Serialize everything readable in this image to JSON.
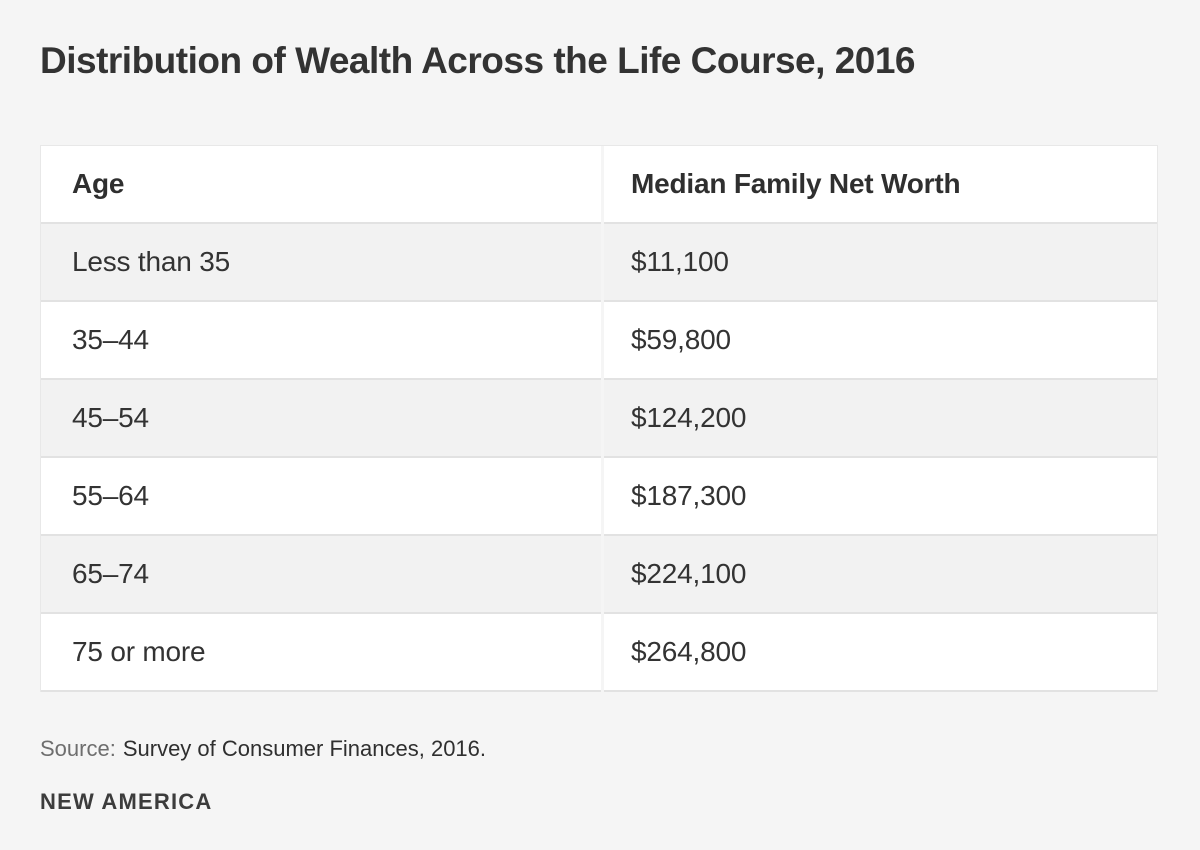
{
  "title": "Distribution of Wealth Across the Life Course, 2016",
  "table": {
    "columns": [
      "Age",
      "Median Family Net Worth"
    ],
    "rows": [
      {
        "age": "Less than 35",
        "net_worth": "$11,100"
      },
      {
        "age": "35–44",
        "net_worth": "$59,800"
      },
      {
        "age": "45–54",
        "net_worth": "$124,200"
      },
      {
        "age": "55–64",
        "net_worth": "$187,300"
      },
      {
        "age": "65–74",
        "net_worth": "$224,100"
      },
      {
        "age": "75 or more",
        "net_worth": "$264,800"
      }
    ]
  },
  "source": {
    "label": "Source:",
    "text": "Survey of Consumer Finances, 2016."
  },
  "brand": "NEW AMERICA",
  "colors": {
    "page_background": "#f5f5f5",
    "row_shaded": "#f2f2f2",
    "row_plain": "#ffffff",
    "separator": "#e2e2e2",
    "text_dark": "#333333",
    "text_muted": "#6e6e6e"
  },
  "chart_data": {
    "type": "table",
    "title": "Distribution of Wealth Across the Life Course, 2016",
    "columns": [
      "Age",
      "Median Family Net Worth"
    ],
    "categories": [
      "Less than 35",
      "35–44",
      "45–54",
      "55–64",
      "65–74",
      "75 or more"
    ],
    "values": [
      11100,
      59800,
      124200,
      187300,
      224100,
      264800
    ],
    "value_labels": [
      "$11,100",
      "$59,800",
      "$124,200",
      "$187,300",
      "$224,100",
      "$264,800"
    ],
    "source": "Survey of Consumer Finances, 2016.",
    "publisher": "NEW AMERICA"
  }
}
